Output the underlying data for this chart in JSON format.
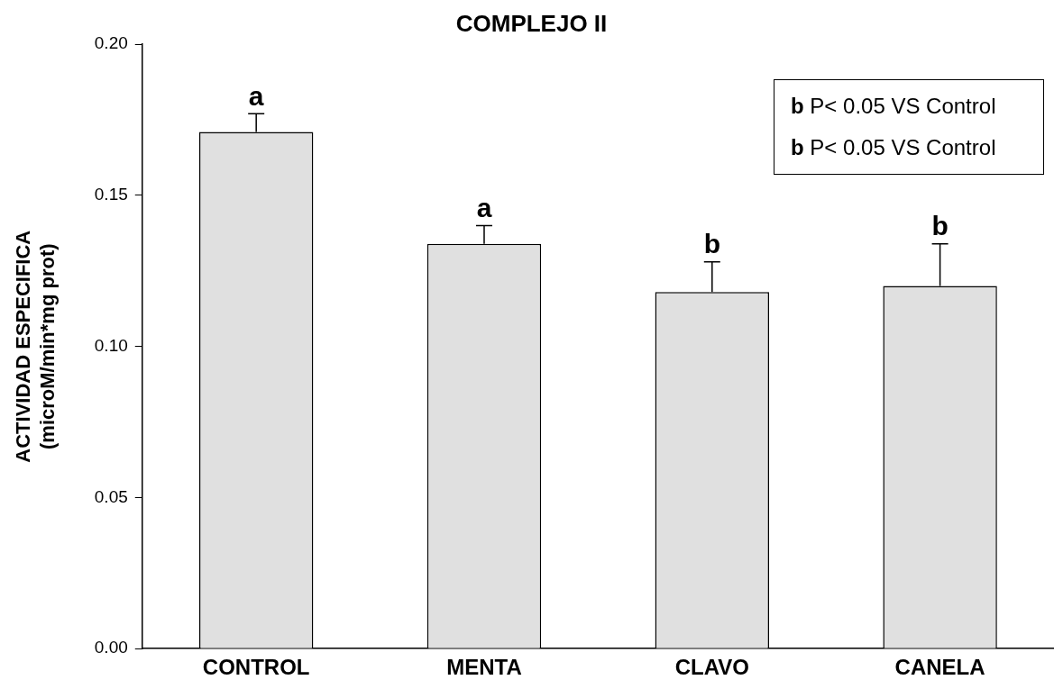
{
  "chart_data": {
    "type": "bar",
    "title": "COMPLEJO II",
    "ylabel": "ACTIVIDAD ESPECIFICA\n(microM/min*mg prot)",
    "categories": [
      "CONTROL",
      "MENTA",
      "CLAVO",
      "CANELA"
    ],
    "values": [
      0.171,
      0.134,
      0.118,
      0.12
    ],
    "errors": [
      [
        0.171,
        0.177
      ],
      [
        0.134,
        0.14
      ],
      [
        0.118,
        0.128
      ],
      [
        0.12,
        0.134
      ]
    ],
    "color": "#e0e0e0",
    "ylim": [
      0,
      0.2
    ],
    "yticks": [
      {
        "value": 0,
        "label": "0.00"
      },
      {
        "value": 0.05,
        "label": "0.05"
      },
      {
        "value": 0.1,
        "label": "0.10"
      },
      {
        "value": 0.15,
        "label": "0.15"
      },
      {
        "value": 0.2,
        "label": "0.20"
      }
    ],
    "grid": false,
    "annotations": [
      {
        "text": "a",
        "x": "CONTROL",
        "y": 0.177
      },
      {
        "text": "a",
        "x": "MENTA",
        "y": 0.14
      },
      {
        "text": "b",
        "x": "CLAVO",
        "y": 0.128
      },
      {
        "text": "b",
        "x": "CANELA",
        "y": 0.134
      },
      "b P< 0.05 VS Control",
      "b P< 0.05 VS Control"
    ]
  }
}
